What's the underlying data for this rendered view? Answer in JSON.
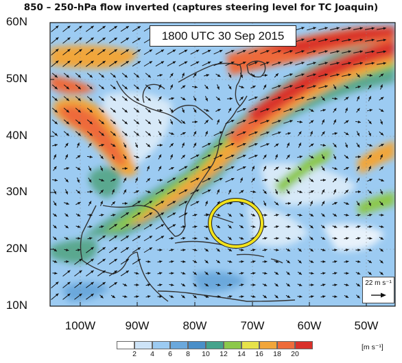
{
  "figure": {
    "title": "850 – 250-hPa flow inverted (captures steering level for TC Joaquin)",
    "timestamp": "1800 UTC 30 Sep 2015"
  },
  "map": {
    "lat_labels": [
      "60N",
      "50N",
      "40N",
      "30N",
      "20N",
      "10N"
    ],
    "lon_labels": [
      "100W",
      "90W",
      "80W",
      "70W",
      "60W",
      "50W"
    ],
    "lat_range": [
      10,
      60
    ],
    "lon_range": [
      -105,
      -45
    ],
    "highlight": {
      "name": "TC Joaquin circle",
      "center_lon": -71.5,
      "center_lat": 24.5
    },
    "vector_scale_label": "22 m s⁻¹"
  },
  "colorbar": {
    "ticks": [
      "2",
      "4",
      "6",
      "8",
      "10",
      "12",
      "14",
      "16",
      "18",
      "20"
    ],
    "units": "[m s⁻¹]",
    "colors": [
      "#ffffff",
      "#cde3f7",
      "#9ccbf2",
      "#6ba8dc",
      "#4a8fc8",
      "#45a38c",
      "#8cc84b",
      "#e6e24a",
      "#f1a63a",
      "#ee6b3a",
      "#d9302a"
    ]
  }
}
